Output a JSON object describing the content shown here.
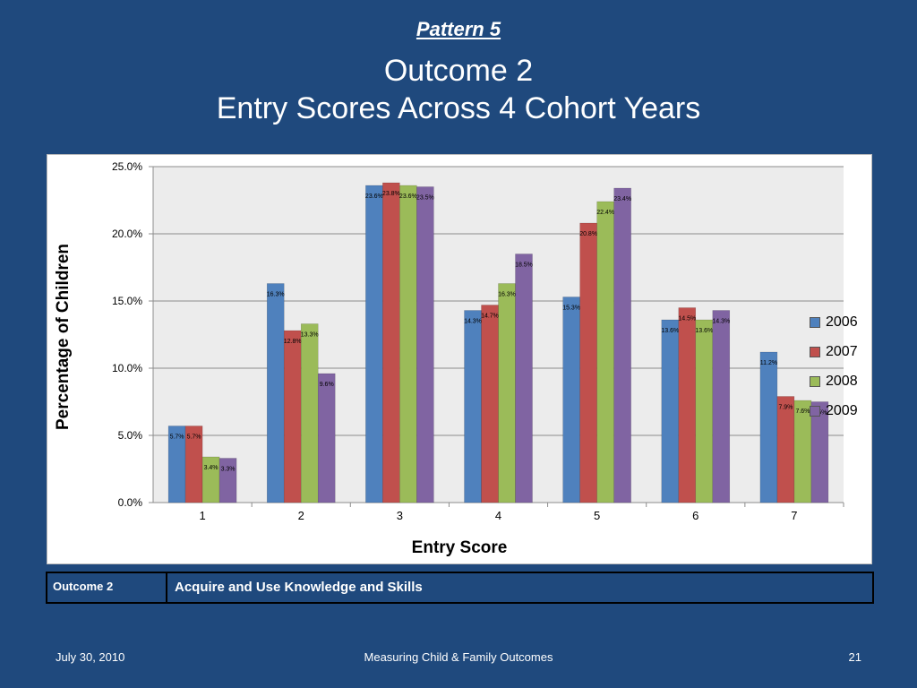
{
  "slide": {
    "pattern": "Pattern 5",
    "title_line1": "Outcome 2",
    "title_line2": "Entry Scores Across 4 Cohort Years"
  },
  "chart_data": {
    "type": "bar",
    "categories": [
      "1",
      "2",
      "3",
      "4",
      "5",
      "6",
      "7"
    ],
    "series": [
      {
        "name": "2006",
        "color": "#4f81bd",
        "values": [
          5.7,
          16.3,
          23.6,
          14.3,
          15.3,
          13.6,
          11.2
        ]
      },
      {
        "name": "2007",
        "color": "#c0504d",
        "values": [
          5.7,
          12.8,
          23.8,
          14.7,
          20.8,
          14.5,
          7.9
        ]
      },
      {
        "name": "2008",
        "color": "#9bbb59",
        "values": [
          3.4,
          13.3,
          23.6,
          16.3,
          22.4,
          13.6,
          7.6
        ]
      },
      {
        "name": "2009",
        "color": "#8064a2",
        "values": [
          3.3,
          9.6,
          23.5,
          18.5,
          23.4,
          14.3,
          7.5
        ]
      }
    ],
    "xlabel": "Entry Score",
    "ylabel": "Percentage of Children",
    "ylim": [
      0,
      25
    ],
    "yticks": [
      "0.0%",
      "5.0%",
      "10.0%",
      "15.0%",
      "20.0%",
      "25.0%"
    ],
    "grid": true,
    "legend": "right"
  },
  "table": {
    "key": "Outcome 2",
    "value": "Acquire and Use Knowledge and Skills"
  },
  "footer": {
    "date": "July 30, 2010",
    "center": "Measuring Child & Family Outcomes",
    "page": "21"
  }
}
